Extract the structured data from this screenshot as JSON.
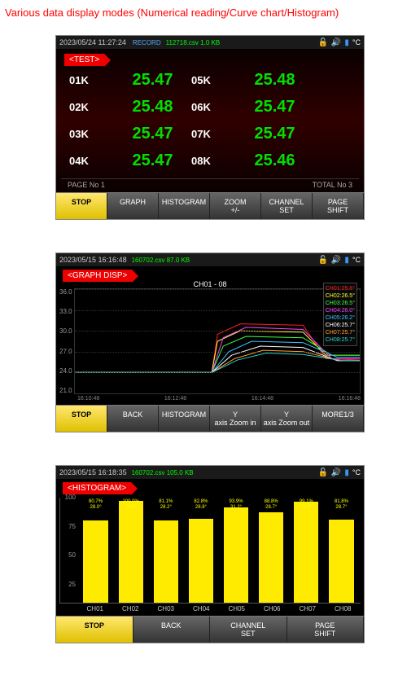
{
  "caption": "Various data display modes (Numerical reading/Curve chart/Histogram)",
  "icons": {
    "lock": "🔓",
    "sound": "🔊",
    "battery": "▮",
    "unit": "°C"
  },
  "colors": {
    "value_green": "#00e000",
    "tag_red": "#e00000",
    "bar_yellow": "#ffeb00",
    "file_green": "#00ff00"
  },
  "numerical": {
    "datetime": "2023/05/24 11:27:24",
    "record_label": "RECORD",
    "file": "112718.csv 1.0 KB",
    "tag": "<TEST>",
    "channels_left": [
      {
        "label": "01K",
        "value": "25.47"
      },
      {
        "label": "02K",
        "value": "25.48"
      },
      {
        "label": "03K",
        "value": "25.47"
      },
      {
        "label": "04K",
        "value": "25.47"
      }
    ],
    "channels_right": [
      {
        "label": "05K",
        "value": "25.48"
      },
      {
        "label": "06K",
        "value": "25.47"
      },
      {
        "label": "07K",
        "value": "25.47"
      },
      {
        "label": "08K",
        "value": "25.46"
      }
    ],
    "footer_left": "PAGE No   1",
    "footer_right": "TOTAL No   3",
    "buttons": [
      "STOP",
      "GRAPH",
      "HISTOGRAM",
      "ZOOM +/-",
      "CHANNEL SET",
      "PAGE SHIFT"
    ]
  },
  "graph": {
    "datetime": "2023/05/15 16:16:48",
    "file": "160702.csv 87.0 KB",
    "tag": "<GRAPH DISP>",
    "title": "CH01 - 08",
    "y_ticks": [
      "36.0",
      "33.0",
      "30.0",
      "27.0",
      "24.0",
      "21.0"
    ],
    "ylim": [
      21.0,
      36.0
    ],
    "x_ticks": [
      "16:10:48",
      "16:12:48",
      "16:14:48",
      "16:16:48"
    ],
    "legend": [
      {
        "label": "CH01:25.8°",
        "color": "#ff2020"
      },
      {
        "label": "CH02:26.5°",
        "color": "#ffff30"
      },
      {
        "label": "CH03:26.5°",
        "color": "#40ff40"
      },
      {
        "label": "CH04:26.0°",
        "color": "#ff40ff"
      },
      {
        "label": "CH05:26.2°",
        "color": "#40c0ff"
      },
      {
        "label": "CH06:25.7°",
        "color": "#ffffff"
      },
      {
        "label": "CH07:25.7°",
        "color": "#ffa030"
      },
      {
        "label": "CH08:25.7°",
        "color": "#30d0d0"
      }
    ],
    "series": [
      {
        "color": "#ff2020",
        "points": [
          [
            0,
            24.0
          ],
          [
            0.48,
            24.0
          ],
          [
            0.5,
            29.5
          ],
          [
            0.58,
            31.0
          ],
          [
            0.8,
            30.8
          ],
          [
            0.88,
            26.0
          ],
          [
            1.0,
            25.8
          ]
        ]
      },
      {
        "color": "#ffff30",
        "points": [
          [
            0,
            24.0
          ],
          [
            0.48,
            24.0
          ],
          [
            0.5,
            28.5
          ],
          [
            0.58,
            30.0
          ],
          [
            0.8,
            29.8
          ],
          [
            0.88,
            26.5
          ],
          [
            1.0,
            26.5
          ]
        ]
      },
      {
        "color": "#40ff40",
        "points": [
          [
            0,
            24.0
          ],
          [
            0.48,
            24.0
          ],
          [
            0.52,
            27.8
          ],
          [
            0.6,
            29.2
          ],
          [
            0.8,
            29.0
          ],
          [
            0.9,
            26.5
          ],
          [
            1.0,
            26.5
          ]
        ]
      },
      {
        "color": "#ff40ff",
        "points": [
          [
            0,
            24.0
          ],
          [
            0.48,
            24.0
          ],
          [
            0.52,
            29.0
          ],
          [
            0.6,
            30.5
          ],
          [
            0.8,
            30.2
          ],
          [
            0.9,
            26.0
          ],
          [
            1.0,
            26.0
          ]
        ]
      },
      {
        "color": "#40c0ff",
        "points": [
          [
            0,
            24.0
          ],
          [
            0.48,
            24.0
          ],
          [
            0.54,
            27.0
          ],
          [
            0.62,
            28.5
          ],
          [
            0.8,
            28.3
          ],
          [
            0.92,
            26.2
          ],
          [
            1.0,
            26.2
          ]
        ]
      },
      {
        "color": "#ffffff",
        "points": [
          [
            0,
            24.0
          ],
          [
            0.48,
            24.0
          ],
          [
            0.55,
            26.5
          ],
          [
            0.65,
            27.8
          ],
          [
            0.8,
            27.6
          ],
          [
            0.92,
            25.7
          ],
          [
            1.0,
            25.7
          ]
        ]
      },
      {
        "color": "#ffa030",
        "points": [
          [
            0,
            24.0
          ],
          [
            0.48,
            24.0
          ],
          [
            0.56,
            26.0
          ],
          [
            0.66,
            27.2
          ],
          [
            0.8,
            27.0
          ],
          [
            0.93,
            25.7
          ],
          [
            1.0,
            25.7
          ]
        ]
      },
      {
        "color": "#30d0d0",
        "points": [
          [
            0,
            24.0
          ],
          [
            0.48,
            24.0
          ],
          [
            0.57,
            25.8
          ],
          [
            0.67,
            26.8
          ],
          [
            0.8,
            26.6
          ],
          [
            0.94,
            25.7
          ],
          [
            1.0,
            25.7
          ]
        ]
      }
    ],
    "buttons": [
      "STOP",
      "BACK",
      "HISTOGRAM",
      "Y axis Zoom in",
      "Y axis Zoom out",
      "MORE1/3"
    ]
  },
  "histogram": {
    "datetime": "2023/05/15 16:18:35",
    "file": "160702.csv 105.0 KB",
    "tag": "<HISTOGRAM>",
    "y_ticks": [
      "100",
      "75",
      "50",
      "25"
    ],
    "ylim": [
      0,
      100
    ],
    "bars": [
      {
        "label": "CH01",
        "top1": "80.7%",
        "top2": "28.0°",
        "value": 80.7
      },
      {
        "label": "CH02",
        "top1": "100.0%",
        "top2": "32.0°",
        "value": 100.0
      },
      {
        "label": "CH03",
        "top1": "81.1%",
        "top2": "28.2°",
        "value": 81.1
      },
      {
        "label": "CH04",
        "top1": "82.8%",
        "top2": "28.8°",
        "value": 82.8
      },
      {
        "label": "CH05",
        "top1": "93.9%",
        "top2": "31.2°",
        "value": 93.9
      },
      {
        "label": "CH06",
        "top1": "88.8%",
        "top2": "28.7°",
        "value": 88.8
      },
      {
        "label": "CH07",
        "top1": "99.1%",
        "top2": "31.2°",
        "value": 99.1
      },
      {
        "label": "CH08",
        "top1": "81.8%",
        "top2": "28.7°",
        "value": 81.8
      }
    ],
    "buttons": [
      "STOP",
      "BACK",
      "CHANNEL SET",
      "PAGE SHIFT"
    ]
  }
}
